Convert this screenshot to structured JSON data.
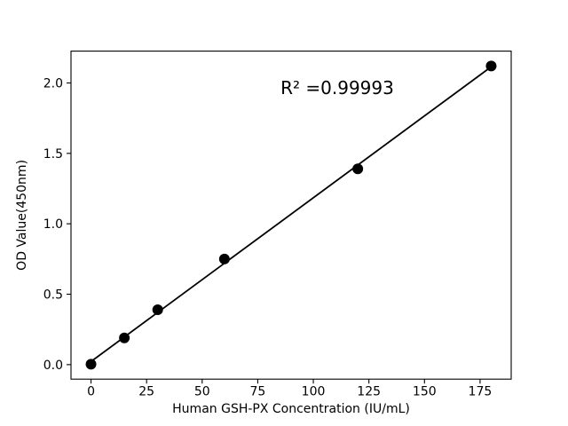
{
  "figure": {
    "background": "#ffffff",
    "foreground": "#000000"
  },
  "chart_data": {
    "type": "scatter",
    "title": "",
    "xlabel": "Human GSH-PX Concentration (IU/mL)",
    "ylabel": "OD Value(450nm)",
    "annotation": "R² =0.99993",
    "r_squared": 0.99993,
    "x": [
      0,
      15,
      30,
      60,
      120,
      180
    ],
    "y": [
      0.003,
      0.19,
      0.39,
      0.75,
      1.39,
      2.12
    ],
    "fit_line": {
      "x0": 0,
      "y0": 0.022,
      "x1": 180,
      "y1": 2.115
    },
    "xtick_labels": [
      "0",
      "25",
      "50",
      "75",
      "100",
      "125",
      "150",
      "175"
    ],
    "xtick_values": [
      0,
      25,
      50,
      75,
      100,
      125,
      150,
      175
    ],
    "ytick_labels": [
      "0.0",
      "0.5",
      "1.0",
      "1.5",
      "2.0"
    ],
    "ytick_values": [
      0.0,
      0.5,
      1.0,
      1.5,
      2.0
    ],
    "xlim": [
      -9,
      189
    ],
    "ylim": [
      -0.103,
      2.226
    ],
    "grid": false,
    "legend": null,
    "marker_color": "#000000",
    "line_color": "#000000",
    "spine_color": "#000000"
  }
}
